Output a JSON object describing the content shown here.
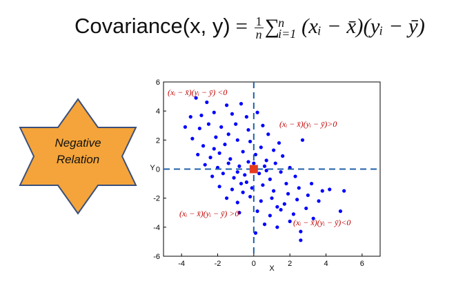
{
  "formula": {
    "lhs": "Covariance(x, y)",
    "eq": "=",
    "frac_num": "1",
    "frac_den": "n",
    "sum_symbol": "∑",
    "sum_upper": "n",
    "sum_lower": "i=1",
    "term": "(xᵢ − x̄)(yᵢ − ȳ)"
  },
  "star_label": [
    "Negative",
    "Relation"
  ],
  "colors": {
    "star_fill": "#F4A43A",
    "star_stroke": "#3A4F7A",
    "points": "#0000FF",
    "center": "#E53A1E",
    "dashed_lines": "#1F5FA8",
    "annotation": "#C00000"
  },
  "chart_data": {
    "type": "scatter",
    "xlabel": "X",
    "ylabel": "Y",
    "xlim": [
      -5,
      7
    ],
    "ylim": [
      -6,
      6
    ],
    "x_ticks": [
      "-4",
      "-2",
      "0",
      "2",
      "4",
      "6"
    ],
    "y_ticks": [
      "6",
      "4",
      "2",
      "0",
      "-2",
      "-4",
      "-6"
    ],
    "mean_point": [
      0,
      0
    ],
    "reference_lines": {
      "x": 0,
      "y": 0,
      "style": "dashed"
    },
    "annotations": [
      {
        "text": "(xᵢ − x̄)(yᵢ − ȳ) <0",
        "quadrant": "top-left"
      },
      {
        "text": "(xᵢ − x̄)(yᵢ − ȳ)>0",
        "quadrant": "top-right"
      },
      {
        "text": "(xᵢ − x̄)(yᵢ − ȳ) >0",
        "quadrant": "bottom-left"
      },
      {
        "text": "(xᵢ − x̄)(yᵢ − ȳ)<0",
        "quadrant": "bottom-right"
      }
    ],
    "series": [
      {
        "points": [
          [
            -3.2,
            4.9
          ],
          [
            -2.6,
            4.6
          ],
          [
            -1.5,
            4.4
          ],
          [
            -0.7,
            4.5
          ],
          [
            -3.5,
            3.6
          ],
          [
            -2.9,
            3.7
          ],
          [
            -2.2,
            3.9
          ],
          [
            -1.2,
            3.8
          ],
          [
            -0.4,
            3.6
          ],
          [
            0.2,
            3.9
          ],
          [
            0.5,
            3.0
          ],
          [
            2.7,
            2.0
          ],
          [
            -3.8,
            2.9
          ],
          [
            -3.0,
            2.8
          ],
          [
            -2.5,
            3.1
          ],
          [
            -1.8,
            2.9
          ],
          [
            -1.0,
            3.1
          ],
          [
            -0.3,
            2.7
          ],
          [
            0.8,
            2.4
          ],
          [
            1.4,
            1.8
          ],
          [
            -3.4,
            2.1
          ],
          [
            -2.8,
            1.6
          ],
          [
            -2.1,
            2.2
          ],
          [
            -1.6,
            1.7
          ],
          [
            -0.9,
            2.0
          ],
          [
            -0.2,
            1.9
          ],
          [
            0.4,
            1.5
          ],
          [
            1.1,
            1.3
          ],
          [
            -3.1,
            1.0
          ],
          [
            -2.4,
            0.8
          ],
          [
            -1.9,
            1.1
          ],
          [
            -1.3,
            0.7
          ],
          [
            -0.6,
            1.2
          ],
          [
            0.1,
            1.0
          ],
          [
            0.7,
            0.6
          ],
          [
            1.6,
            0.9
          ],
          [
            -2.7,
            0.3
          ],
          [
            -2.0,
            0.1
          ],
          [
            -1.4,
            0.4
          ],
          [
            -0.8,
            0.2
          ],
          [
            -0.3,
            0.5
          ],
          [
            0.6,
            0.2
          ],
          [
            1.2,
            0.4
          ],
          [
            2.0,
            0.1
          ],
          [
            -2.3,
            -0.5
          ],
          [
            -1.7,
            -0.3
          ],
          [
            -1.1,
            -0.6
          ],
          [
            -0.5,
            -0.4
          ],
          [
            0.3,
            -0.3
          ],
          [
            0.9,
            -0.7
          ],
          [
            1.5,
            -0.2
          ],
          [
            2.3,
            -0.5
          ],
          [
            -1.9,
            -1.2
          ],
          [
            -1.2,
            -1.4
          ],
          [
            -0.7,
            -1.0
          ],
          [
            -0.1,
            -1.3
          ],
          [
            0.5,
            -1.1
          ],
          [
            1.1,
            -1.5
          ],
          [
            1.8,
            -1.0
          ],
          [
            2.5,
            -1.3
          ],
          [
            3.2,
            -1.0
          ],
          [
            -1.5,
            -2.0
          ],
          [
            -0.9,
            -2.3
          ],
          [
            -0.2,
            -1.9
          ],
          [
            0.4,
            -2.2
          ],
          [
            1.0,
            -2.0
          ],
          [
            1.7,
            -2.4
          ],
          [
            2.4,
            -2.1
          ],
          [
            3.0,
            -1.8
          ],
          [
            3.8,
            -1.5
          ],
          [
            -0.8,
            -3.0
          ],
          [
            0.2,
            -2.9
          ],
          [
            0.9,
            -3.2
          ],
          [
            1.5,
            -2.8
          ],
          [
            2.2,
            -3.1
          ],
          [
            2.9,
            -2.7
          ],
          [
            3.6,
            -2.2
          ],
          [
            4.2,
            -1.4
          ],
          [
            0.6,
            -3.8
          ],
          [
            1.3,
            -4.0
          ],
          [
            2.0,
            -3.6
          ],
          [
            2.6,
            -4.3
          ],
          [
            3.3,
            -3.4
          ],
          [
            4.8,
            -2.9
          ],
          [
            0.1,
            -4.4
          ],
          [
            2.6,
            -4.9
          ],
          [
            5.0,
            -1.5
          ],
          [
            -0.4,
            -0.9
          ],
          [
            0.0,
            0.4
          ],
          [
            -0.6,
            -1.6
          ],
          [
            1.9,
            -1.7
          ],
          [
            -2.2,
            1.4
          ],
          [
            -1.4,
            2.4
          ],
          [
            0.7,
            -0.1
          ],
          [
            -0.9,
            -0.2
          ],
          [
            1.3,
            -2.6
          ]
        ]
      }
    ]
  }
}
